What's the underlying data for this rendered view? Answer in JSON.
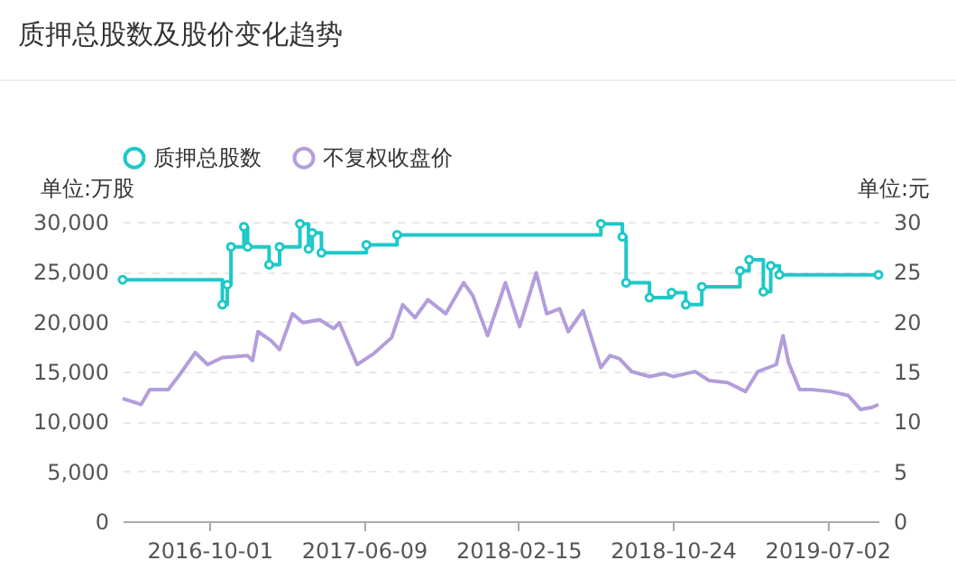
{
  "chart_data": {
    "type": "line",
    "title": "质押总股数及股价变化趋势",
    "ylabel": "单位:万股",
    "y2label": "单位:元",
    "xlim": [
      "2016-05-13",
      "2019-09-23"
    ],
    "xticks": [
      "2016-10-01",
      "2017-06-09",
      "2018-02-15",
      "2018-10-24",
      "2019-07-02"
    ],
    "ylim": [
      0,
      30000
    ],
    "yticks": [
      0,
      {
        "value": 5000,
        "label": "5,000"
      },
      {
        "value": 10000,
        "label": "10,000"
      },
      {
        "value": 15000,
        "label": "15,000"
      },
      {
        "value": 20000,
        "label": "20,000"
      },
      {
        "value": 25000,
        "label": "25,000"
      },
      {
        "value": 30000,
        "label": "30,000"
      }
    ],
    "y2lim": [
      0,
      30
    ],
    "y2ticks": [
      0,
      5,
      10,
      15,
      20,
      25,
      30
    ],
    "grid": "y",
    "legend": "top",
    "series": [
      {
        "name": "质押总股数",
        "type": "step",
        "color": "#1ec8c8",
        "marker": "circle",
        "x": [
          "2016-05-13",
          "2016-10-22",
          "2016-10-30",
          "2016-11-05",
          "2016-11-26",
          "2016-12-02",
          "2017-01-06",
          "2017-01-23",
          "2017-02-25",
          "2017-03-11",
          "2017-03-17",
          "2017-04-01",
          "2017-06-13",
          "2017-08-02",
          "2018-06-29",
          "2018-08-03",
          "2018-08-09",
          "2018-09-16",
          "2018-10-22",
          "2018-11-14",
          "2018-12-10",
          "2019-02-10",
          "2019-02-25",
          "2019-03-20",
          "2019-04-01",
          "2019-04-15",
          "2019-09-23"
        ],
        "values": [
          24200,
          21700,
          23700,
          27500,
          29500,
          27500,
          25700,
          27500,
          29800,
          27300,
          28900,
          26900,
          27700,
          28700,
          29800,
          28500,
          23900,
          22400,
          22900,
          21700,
          23500,
          25100,
          26200,
          23000,
          25600,
          24700,
          24700
        ]
      },
      {
        "name": "不复权收盘价",
        "type": "line",
        "color": "#b39ddb",
        "axis": "y2",
        "x": [
          "2016-05-13",
          "2016-06-12",
          "2016-06-26",
          "2016-07-26",
          "2016-08-15",
          "2016-09-08",
          "2016-09-28",
          "2016-10-22",
          "2016-12-02",
          "2016-12-10",
          "2016-12-19",
          "2017-01-09",
          "2017-01-23",
          "2017-02-13",
          "2017-03-02",
          "2017-03-29",
          "2017-04-21",
          "2017-04-30",
          "2017-05-29",
          "2017-06-25",
          "2017-07-24",
          "2017-08-11",
          "2017-08-31",
          "2017-09-21",
          "2017-10-20",
          "2017-11-18",
          "2017-12-03",
          "2017-12-27",
          "2018-01-25",
          "2018-02-17",
          "2018-03-16",
          "2018-04-02",
          "2018-04-23",
          "2018-05-07",
          "2018-05-31",
          "2018-06-29",
          "2018-07-14",
          "2018-07-29",
          "2018-08-18",
          "2018-09-16",
          "2018-10-10",
          "2018-10-25",
          "2018-11-29",
          "2018-12-22",
          "2019-01-21",
          "2019-02-19",
          "2019-03-11",
          "2019-04-10",
          "2019-04-21",
          "2019-04-30",
          "2019-05-18",
          "2019-06-07",
          "2019-07-07",
          "2019-08-05",
          "2019-08-25",
          "2019-09-12",
          "2019-09-23"
        ],
        "values": [
          12.3,
          11.7,
          13.2,
          13.2,
          14.8,
          16.9,
          15.7,
          16.4,
          16.6,
          16.1,
          19.0,
          18.1,
          17.2,
          20.8,
          19.9,
          20.2,
          19.3,
          19.9,
          15.7,
          16.8,
          18.4,
          21.7,
          20.4,
          22.2,
          20.8,
          23.9,
          22.6,
          18.6,
          23.9,
          19.5,
          24.9,
          20.8,
          21.3,
          19.0,
          21.1,
          15.4,
          16.6,
          16.3,
          15.0,
          14.5,
          14.8,
          14.5,
          15.0,
          14.1,
          13.9,
          13.0,
          15.0,
          15.7,
          18.6,
          15.9,
          13.2,
          13.2,
          13.0,
          12.6,
          11.2,
          11.4,
          11.7
        ]
      }
    ]
  }
}
